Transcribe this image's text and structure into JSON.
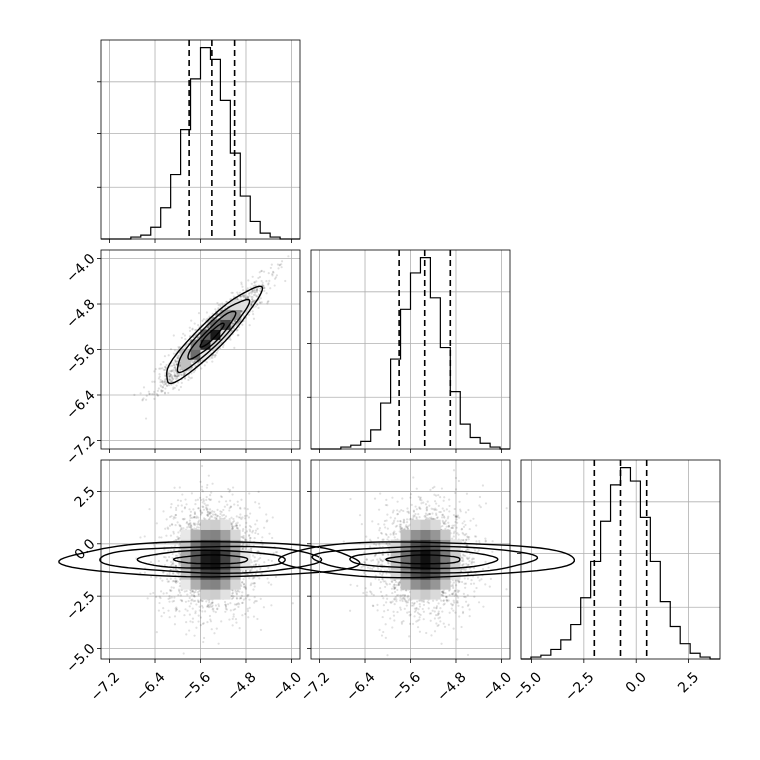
{
  "chart_data": {
    "type": "corner",
    "n_params": 3,
    "grid": true,
    "params": [
      {
        "range": [
          -7.35,
          -3.85
        ],
        "ticks": [
          -7.2,
          -6.4,
          -5.6,
          -4.8,
          -4.0
        ],
        "tick_labels": [
          "−7.2",
          "−6.4",
          "−5.6",
          "−4.8",
          "−4.0"
        ],
        "mean": -5.4,
        "sd": 0.42,
        "quantiles": [
          -5.8,
          -5.4,
          -5.0
        ]
      },
      {
        "range": [
          -7.35,
          -3.85
        ],
        "ticks": [
          -7.2,
          -6.4,
          -5.6,
          -4.8,
          -4.0
        ],
        "tick_labels": [
          "−7.2",
          "−6.4",
          "−5.6",
          "−4.8",
          "−4.0"
        ],
        "mean": -5.35,
        "sd": 0.42,
        "quantiles": [
          -5.8,
          -5.35,
          -4.9
        ]
      },
      {
        "range": [
          -5.5,
          4.0
        ],
        "ticks": [
          -5.0,
          -2.5,
          0.0,
          2.5
        ],
        "tick_labels": [
          "−5.0",
          "−2.5",
          "0.0",
          "2.5"
        ],
        "mean": -0.75,
        "sd": 1.3,
        "quantiles": [
          -2.0,
          -0.75,
          0.5
        ]
      }
    ],
    "histograms": [
      {
        "param": 0,
        "bins": [
          -7.35,
          -7.175,
          -7.0,
          -6.825,
          -6.65,
          -6.475,
          -6.3,
          -6.125,
          -5.95,
          -5.775,
          -5.6,
          -5.425,
          -5.25,
          -5.075,
          -4.9,
          -4.725,
          -4.55,
          -4.375,
          -4.2,
          -4.025,
          -3.85
        ],
        "counts": [
          0,
          0,
          0,
          1,
          2,
          6,
          16,
          33,
          56,
          82,
          98,
          92,
          71,
          44,
          22,
          9,
          3,
          1,
          0,
          0
        ]
      },
      {
        "param": 1,
        "bins": [
          -7.35,
          -7.175,
          -7.0,
          -6.825,
          -6.65,
          -6.475,
          -6.3,
          -6.125,
          -5.95,
          -5.775,
          -5.6,
          -5.425,
          -5.25,
          -5.075,
          -4.9,
          -4.725,
          -4.55,
          -4.375,
          -4.2,
          -4.025,
          -3.85
        ],
        "counts": [
          0,
          0,
          0,
          1,
          2,
          4,
          10,
          24,
          47,
          73,
          92,
          100,
          79,
          53,
          30,
          13,
          6,
          3,
          1,
          0
        ]
      },
      {
        "param": 2,
        "bins": [
          -5.5,
          -5.025,
          -4.55,
          -4.075,
          -3.6,
          -3.125,
          -2.65,
          -2.175,
          -1.7,
          -1.225,
          -0.75,
          -0.275,
          0.2,
          0.675,
          1.15,
          1.625,
          2.1,
          2.575,
          3.05,
          3.525,
          4.0
        ],
        "counts": [
          0,
          1,
          2,
          5,
          10,
          18,
          32,
          51,
          72,
          91,
          100,
          93,
          74,
          51,
          30,
          17,
          8,
          3,
          1,
          0
        ]
      }
    ],
    "pairs": [
      {
        "x": 0,
        "y": 1,
        "correlation": 0.92
      },
      {
        "x": 0,
        "y": 2,
        "correlation": 0.0
      },
      {
        "x": 1,
        "y": 2,
        "correlation": 0.0
      }
    ],
    "contour_levels_sigma": [
      0.5,
      1.0,
      1.5,
      2.0
    ]
  }
}
